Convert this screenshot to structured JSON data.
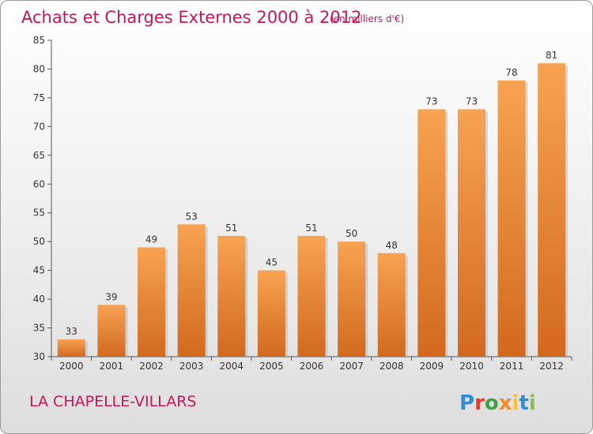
{
  "chart_data": {
    "type": "bar",
    "title": "Achats et Charges Externes 2000 à 2012",
    "subtitle": "(en milliers d'€)",
    "categories": [
      "2000",
      "2001",
      "2002",
      "2003",
      "2004",
      "2005",
      "2006",
      "2007",
      "2008",
      "2009",
      "2010",
      "2011",
      "2012"
    ],
    "values": [
      33,
      39,
      49,
      53,
      51,
      45,
      51,
      50,
      48,
      73,
      73,
      78,
      81
    ],
    "ylim": [
      30,
      85
    ],
    "yticks": [
      30,
      35,
      40,
      45,
      50,
      55,
      60,
      65,
      70,
      75,
      80,
      85
    ],
    "xlabel": "",
    "ylabel": "",
    "grid": false,
    "legend": "none",
    "bar_color_top": "#f7a352",
    "bar_color_bottom": "#d2691e"
  },
  "footer": {
    "place": "LA CHAPELLE-VILLARS",
    "brand_letters": [
      {
        "char": "P",
        "color": "#2e8fd6"
      },
      {
        "char": "r",
        "color": "#e53935"
      },
      {
        "char": "o",
        "color": "#43a047"
      },
      {
        "char": "x",
        "color": "#f28c28"
      },
      {
        "char": "i",
        "color": "#fbc02d"
      },
      {
        "char": "t",
        "color": "#2e8fd6"
      },
      {
        "char": "i",
        "color": "#8bc34a"
      }
    ]
  },
  "colors": {
    "title": "#c2185b",
    "axis": "#555555"
  }
}
